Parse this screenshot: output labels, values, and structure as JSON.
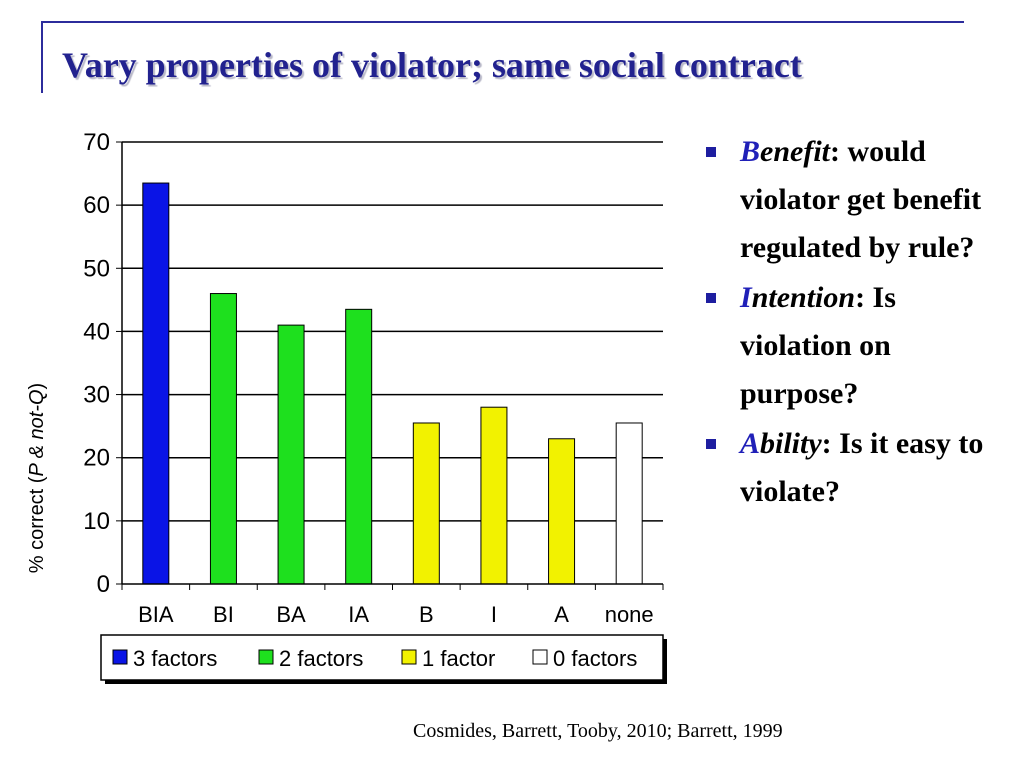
{
  "slide": {
    "title": "Vary properties of violator; same social contract",
    "citation": "Cosmides, Barrett, Tooby, 2010; Barrett, 1999"
  },
  "bullets": [
    {
      "initial": "B",
      "term_rest": "enefit",
      "text": ": would violator get benefit regulated by rule?"
    },
    {
      "initial": "I",
      "term_rest": "ntention",
      "text": ": Is violation on purpose?"
    },
    {
      "initial": "A",
      "term_rest": "bility",
      "text": ": Is it easy to violate?"
    }
  ],
  "chart_data": {
    "type": "bar",
    "title": "",
    "xlabel": "",
    "ylabel": "% correct (P & not-Q)",
    "ylabel_parts": {
      "pre": "% correct (",
      "italic": "P & not-Q",
      "post": ")"
    },
    "categories": [
      "BIA",
      "BI",
      "BA",
      "IA",
      "B",
      "I",
      "A",
      "none"
    ],
    "values": [
      63.5,
      46,
      41,
      43.5,
      25.5,
      28,
      23,
      25.5
    ],
    "groups": [
      0,
      1,
      1,
      1,
      2,
      2,
      2,
      3
    ],
    "legend": [
      {
        "label": "3 factors",
        "color": "#0a14e6"
      },
      {
        "label": "2 factors",
        "color": "#1ee01e"
      },
      {
        "label": "1 factor",
        "color": "#f2f200"
      },
      {
        "label": "0 factors",
        "color": "#ffffff"
      }
    ],
    "legend_position": "bottom",
    "ylim": [
      0,
      70
    ],
    "yticks": [
      0,
      10,
      20,
      30,
      40,
      50,
      60,
      70
    ],
    "grid": true
  }
}
